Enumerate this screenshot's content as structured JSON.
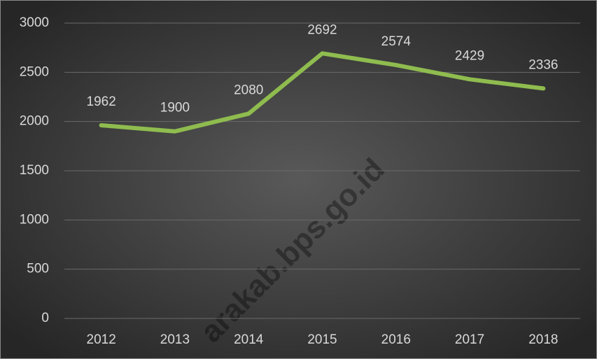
{
  "chart_data": {
    "type": "line",
    "categories": [
      "2012",
      "2013",
      "2014",
      "2015",
      "2016",
      "2017",
      "2018"
    ],
    "values": [
      1962,
      1900,
      2080,
      2692,
      2574,
      2429,
      2336
    ],
    "color": "#8fbc4f",
    "ylim": [
      0,
      3000
    ],
    "yticks": [
      0,
      500,
      1000,
      1500,
      2000,
      2500,
      3000
    ],
    "grid": true,
    "watermark": "arakab.bps.go.id"
  }
}
